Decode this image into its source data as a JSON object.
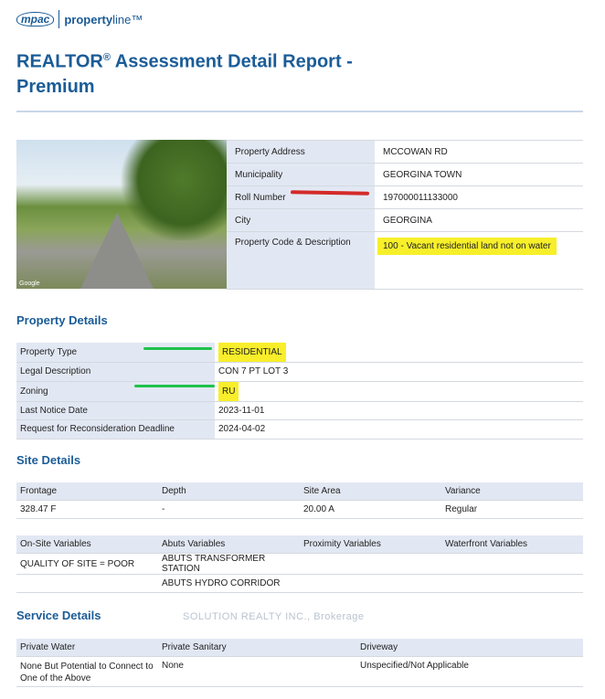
{
  "logo": {
    "brand": "mpac",
    "product_a": "property",
    "product_b": "line™"
  },
  "title": {
    "main": "REALTOR",
    "reg": "®",
    "rest": " Assessment Detail Report - Premium"
  },
  "photo": {
    "credit": "Google"
  },
  "address_table": [
    {
      "label": "Property Address",
      "value": "MCCOWAN RD"
    },
    {
      "label": "Municipality",
      "value": "GEORGINA TOWN"
    },
    {
      "label": "Roll Number",
      "value": "197000011133000"
    },
    {
      "label": "City",
      "value": "GEORGINA"
    },
    {
      "label": "Property Code & Description",
      "value": "100 - Vacant residential land not on water"
    }
  ],
  "property_details": {
    "heading": "Property Details",
    "rows": [
      {
        "label": "Property Type",
        "value": "RESIDENTIAL"
      },
      {
        "label": "Legal Description",
        "value": "CON 7 PT LOT 3"
      },
      {
        "label": "Zoning",
        "value": "RU"
      },
      {
        "label": "Last Notice Date",
        "value": "2023-11-01"
      },
      {
        "label": "Request for Reconsideration Deadline",
        "value": "2024-04-02"
      }
    ]
  },
  "site_details": {
    "heading": "Site Details",
    "headers": [
      "Frontage",
      "Depth",
      "Site Area",
      "Variance"
    ],
    "values": [
      "328.47 F",
      "-",
      "20.00 A",
      "Regular"
    ],
    "var_headers": [
      "On-Site Variables",
      "Abuts Variables",
      "Proximity Variables",
      "Waterfront Variables"
    ],
    "var_rows": [
      [
        "QUALITY OF SITE = POOR",
        "ABUTS TRANSFORMER STATION",
        "",
        ""
      ],
      [
        "",
        "ABUTS HYDRO CORRIDOR",
        "",
        ""
      ]
    ]
  },
  "service_details": {
    "heading": "Service Details",
    "headers": [
      "Private Water",
      "Private Sanitary",
      "Driveway"
    ],
    "values": [
      "None But Potential to Connect to One of the Above",
      "None",
      "Unspecified/Not Applicable"
    ]
  },
  "watermark": "SOLUTION REALTY INC., Brokerage",
  "colors": {
    "brand_blue": "#1b5c97",
    "label_bg": "#e2e8f3",
    "highlight": "#f7ef2a"
  }
}
